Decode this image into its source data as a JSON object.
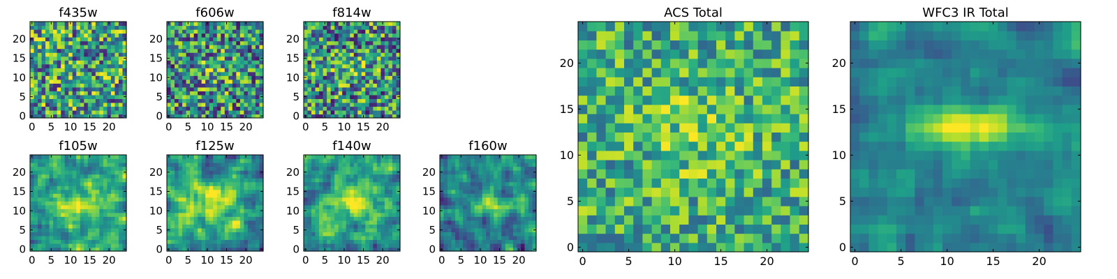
{
  "chart_data": [
    {
      "type": "heatmap",
      "title": "f435w",
      "xlabel": "",
      "ylabel": "",
      "xlim": [
        -0.5,
        24.5
      ],
      "ylim": [
        -0.5,
        24.5
      ],
      "xticks": [
        "0",
        "5",
        "10",
        "15",
        "20"
      ],
      "yticks": [
        "0",
        "5",
        "10",
        "15",
        "20"
      ],
      "values": {
        "size": 25,
        "pattern": "uniform noise",
        "mean": 0.55,
        "spread": 0.45,
        "seed": 11
      }
    },
    {
      "type": "heatmap",
      "title": "f606w",
      "xlabel": "",
      "ylabel": "",
      "xlim": [
        -0.5,
        24.5
      ],
      "ylim": [
        -0.5,
        24.5
      ],
      "xticks": [
        "0",
        "5",
        "10",
        "15",
        "20"
      ],
      "yticks": [
        "0",
        "5",
        "10",
        "15",
        "20"
      ],
      "values": {
        "size": 25,
        "pattern": "noise with faint central source",
        "mean": 0.5,
        "spread": 0.45,
        "source_center": [
          12,
          12
        ],
        "source_peak": 0.2,
        "source_width": [
          5,
          3
        ],
        "seed": 23
      }
    },
    {
      "type": "heatmap",
      "title": "f814w",
      "xlabel": "",
      "ylabel": "",
      "xlim": [
        -0.5,
        24.5
      ],
      "ylim": [
        -0.5,
        24.5
      ],
      "xticks": [
        "0",
        "5",
        "10",
        "15",
        "20"
      ],
      "yticks": [
        "0",
        "5",
        "10",
        "15",
        "20"
      ],
      "values": {
        "size": 25,
        "pattern": "noise with faint central source",
        "mean": 0.5,
        "spread": 0.45,
        "source_center": [
          12,
          12
        ],
        "source_peak": 0.2,
        "source_width": [
          5,
          3
        ],
        "seed": 37
      }
    },
    {
      "type": "heatmap",
      "title": "f105w",
      "xlabel": "",
      "ylabel": "",
      "xlim": [
        -0.5,
        24.5
      ],
      "ylim": [
        -0.5,
        24.5
      ],
      "xticks": [
        "0",
        "5",
        "10",
        "15",
        "20"
      ],
      "yticks": [
        "0",
        "5",
        "10",
        "15",
        "20"
      ],
      "values": {
        "size": 25,
        "pattern": "smooth source",
        "mean": 0.55,
        "spread": 0.3,
        "source_center": [
          13,
          11
        ],
        "source_peak": 0.35,
        "source_width": [
          7,
          5
        ],
        "seed": 41
      }
    },
    {
      "type": "heatmap",
      "title": "f125w",
      "xlabel": "",
      "ylabel": "",
      "xlim": [
        -0.5,
        24.5
      ],
      "ylim": [
        -0.5,
        24.5
      ],
      "xticks": [
        "0",
        "5",
        "10",
        "15",
        "20"
      ],
      "yticks": [
        "0",
        "5",
        "10",
        "15",
        "20"
      ],
      "values": {
        "size": 25,
        "pattern": "smooth source",
        "mean": 0.55,
        "spread": 0.3,
        "source_center": [
          12,
          12
        ],
        "source_peak": 0.35,
        "source_width": [
          7,
          5
        ],
        "seed": 53
      }
    },
    {
      "type": "heatmap",
      "title": "f140w",
      "xlabel": "",
      "ylabel": "",
      "xlim": [
        -0.5,
        24.5
      ],
      "ylim": [
        -0.5,
        24.5
      ],
      "xticks": [
        "0",
        "5",
        "10",
        "15",
        "20"
      ],
      "yticks": [
        "0",
        "5",
        "10",
        "15",
        "20"
      ],
      "values": {
        "size": 25,
        "pattern": "smooth source",
        "mean": 0.55,
        "spread": 0.3,
        "source_center": [
          12,
          13
        ],
        "source_peak": 0.4,
        "source_width": [
          7,
          4
        ],
        "seed": 67
      }
    },
    {
      "type": "heatmap",
      "title": "f160w",
      "xlabel": "",
      "ylabel": "",
      "xlim": [
        -0.5,
        24.5
      ],
      "ylim": [
        -0.5,
        24.5
      ],
      "xticks": [
        "0",
        "5",
        "10",
        "15",
        "20"
      ],
      "yticks": [
        "0",
        "5",
        "10",
        "15",
        "20"
      ],
      "values": {
        "size": 25,
        "pattern": "smooth source",
        "mean": 0.45,
        "spread": 0.3,
        "source_center": [
          13,
          12
        ],
        "source_peak": 0.45,
        "source_width": [
          6,
          2.5
        ],
        "seed": 79
      }
    },
    {
      "type": "heatmap",
      "title": "ACS Total",
      "xlabel": "",
      "ylabel": "",
      "xlim": [
        -0.5,
        24.5
      ],
      "ylim": [
        -0.5,
        24.5
      ],
      "xticks": [
        "0",
        "5",
        "10",
        "15",
        "20"
      ],
      "yticks": [
        "0",
        "5",
        "10",
        "15",
        "20"
      ],
      "values": {
        "size": 25,
        "pattern": "noise with faint central source",
        "mean": 0.62,
        "spread": 0.3,
        "source_center": [
          12,
          13
        ],
        "source_peak": 0.15,
        "source_width": [
          6,
          5
        ],
        "seed": 97
      }
    },
    {
      "type": "heatmap",
      "title": "WFC3 IR Total",
      "xlabel": "",
      "ylabel": "",
      "xlim": [
        -0.5,
        24.5
      ],
      "ylim": [
        -0.5,
        24.5
      ],
      "xticks": [
        "0",
        "5",
        "10",
        "15",
        "20"
      ],
      "yticks": [
        "0",
        "5",
        "10",
        "15",
        "20"
      ],
      "values": {
        "size": 25,
        "pattern": "smooth source",
        "mean": 0.45,
        "spread": 0.18,
        "source_center": [
          12,
          13
        ],
        "source_peak": 0.55,
        "source_width": [
          6,
          2
        ],
        "seed": 113
      }
    }
  ],
  "colormap": "viridis"
}
